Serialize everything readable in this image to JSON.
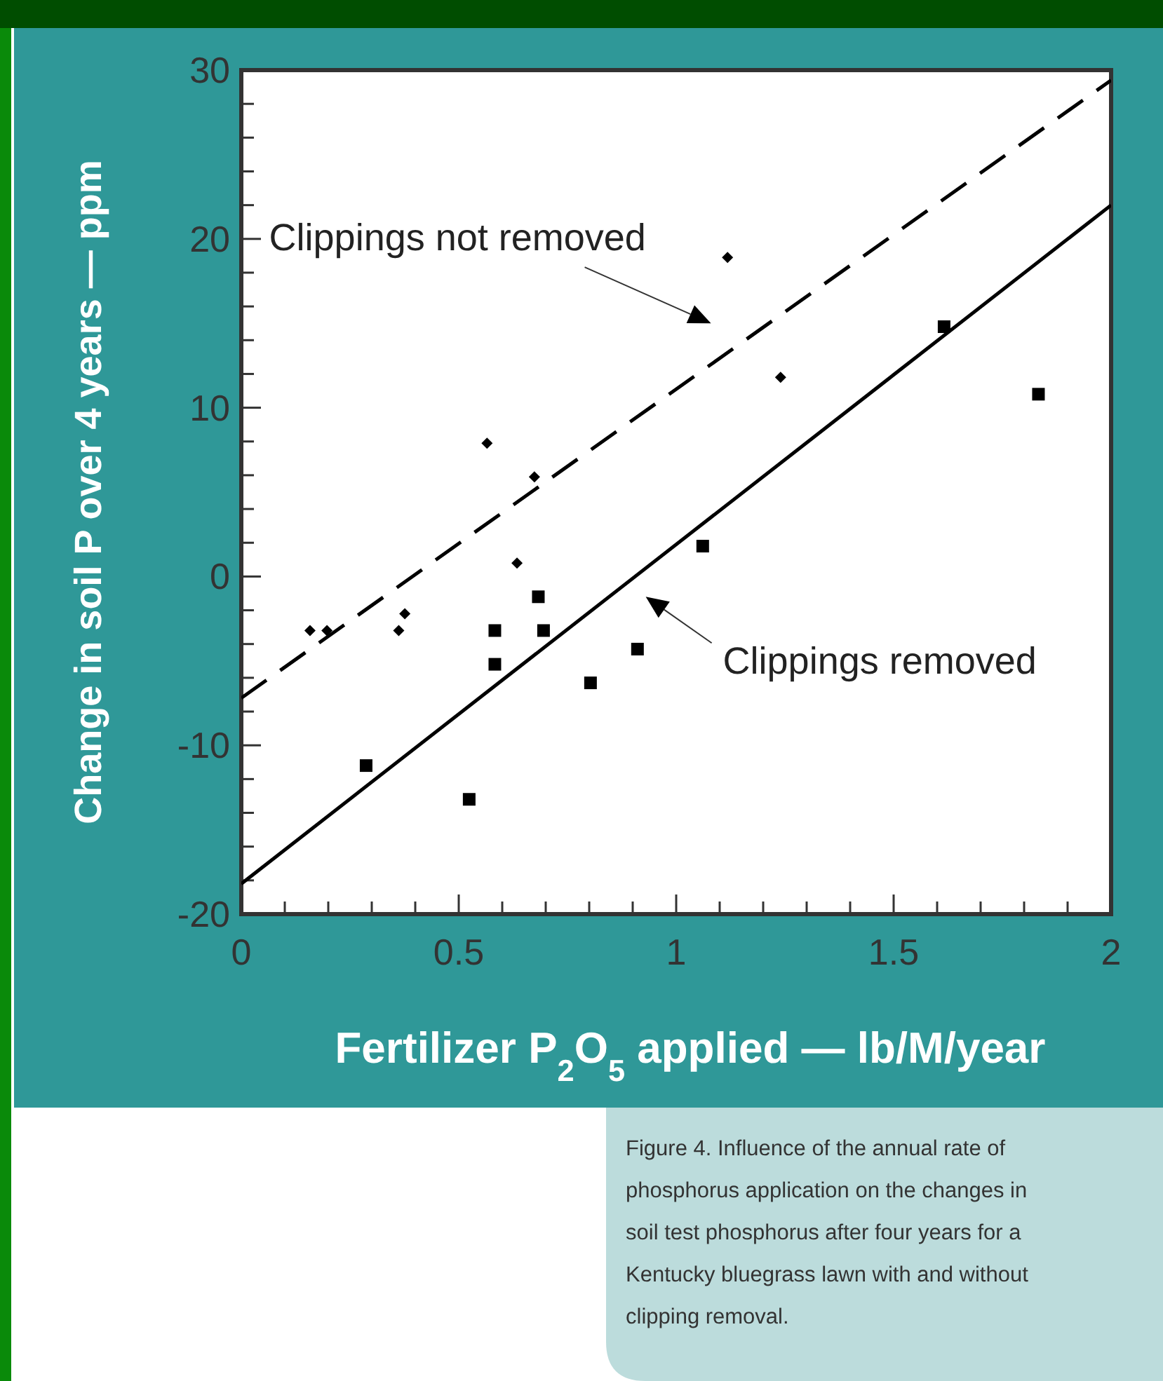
{
  "chart_data": {
    "type": "scatter",
    "xlabel": "Fertilizer P$_{2}$O$_{5}$ applied — lb/M/year",
    "ylabel": "Change in soil P over 4 years — ppm",
    "xlim": [
      0,
      2
    ],
    "ylim": [
      -20,
      30
    ],
    "xticks": [
      0,
      {
        "value": 0.1,
        "label": null
      },
      {
        "value": 0.2,
        "label": null
      },
      {
        "value": 0.3,
        "label": null
      },
      {
        "value": 0.4,
        "label": null
      },
      0.5,
      {
        "value": 0.6,
        "label": null
      },
      {
        "value": 0.7,
        "label": null
      },
      {
        "value": 0.8,
        "label": null
      },
      {
        "value": 0.9,
        "label": null
      },
      1,
      {
        "value": 1.1,
        "label": null
      },
      {
        "value": 1.2,
        "label": null
      },
      {
        "value": 1.3,
        "label": null
      },
      {
        "value": 1.4,
        "label": null
      },
      1.5,
      {
        "value": 1.6,
        "label": null
      },
      {
        "value": 1.7,
        "label": null
      },
      {
        "value": 1.8,
        "label": null
      },
      {
        "value": 1.9,
        "label": null
      },
      2
    ],
    "yticks": [
      -20,
      {
        "value": -18,
        "label": null
      },
      {
        "value": -16,
        "label": null
      },
      {
        "value": -14,
        "label": null
      },
      {
        "value": -12,
        "label": null
      },
      -10,
      {
        "value": -8,
        "label": null
      },
      {
        "value": -6,
        "label": null
      },
      {
        "value": -4,
        "label": null
      },
      {
        "value": -2,
        "label": null
      },
      0,
      {
        "value": 2,
        "label": null
      },
      {
        "value": 4,
        "label": null
      },
      {
        "value": 6,
        "label": null
      },
      {
        "value": 8,
        "label": null
      },
      10,
      {
        "value": 12,
        "label": null
      },
      {
        "value": 14,
        "label": null
      },
      {
        "value": 16,
        "label": null
      },
      {
        "value": 18,
        "label": null
      },
      20,
      {
        "value": 22,
        "label": null
      },
      {
        "value": 24,
        "label": null
      },
      {
        "value": 26,
        "label": null
      },
      {
        "value": 28,
        "label": null
      },
      30
    ],
    "grid": false,
    "series": [
      {
        "marker": "diamond",
        "color": "#000000",
        "x": [
          0.158,
          0.197,
          0.362,
          0.376,
          0.565,
          0.634,
          0.674,
          1.118,
          1.24
        ],
        "values": [
          -3.2,
          -3.2,
          -3.2,
          -2.2,
          7.9,
          0.8,
          5.9,
          18.9,
          11.8
        ]
      },
      {
        "marker": "square",
        "color": "#000000",
        "x": [
          0.287,
          0.524,
          0.583,
          0.583,
          0.683,
          0.695,
          0.803,
          0.911,
          1.061,
          1.616,
          1.833
        ],
        "values": [
          -11.2,
          -13.2,
          -3.2,
          -5.2,
          -1.2,
          -3.2,
          -6.3,
          -4.3,
          1.8,
          14.8,
          10.8
        ]
      },
      {
        "type": "line",
        "line_style": "dashed",
        "marker": "none",
        "color": "#000000",
        "x": [
          0,
          2
        ],
        "values": [
          -7.2,
          29.4
        ]
      },
      {
        "type": "line",
        "line_style": "solid",
        "marker": "none",
        "color": "#000000",
        "x": [
          0,
          2
        ],
        "values": [
          -18.2,
          22
        ]
      }
    ],
    "annotations": [
      "Clippings not removed",
      "Clippings removed",
      "Figure 4. Influence of the annual rate of phosphorus application on the changes in soil test phosphorus after four years for a Kentucky bluegrass lawn with and without clipping removal."
    ]
  }
}
